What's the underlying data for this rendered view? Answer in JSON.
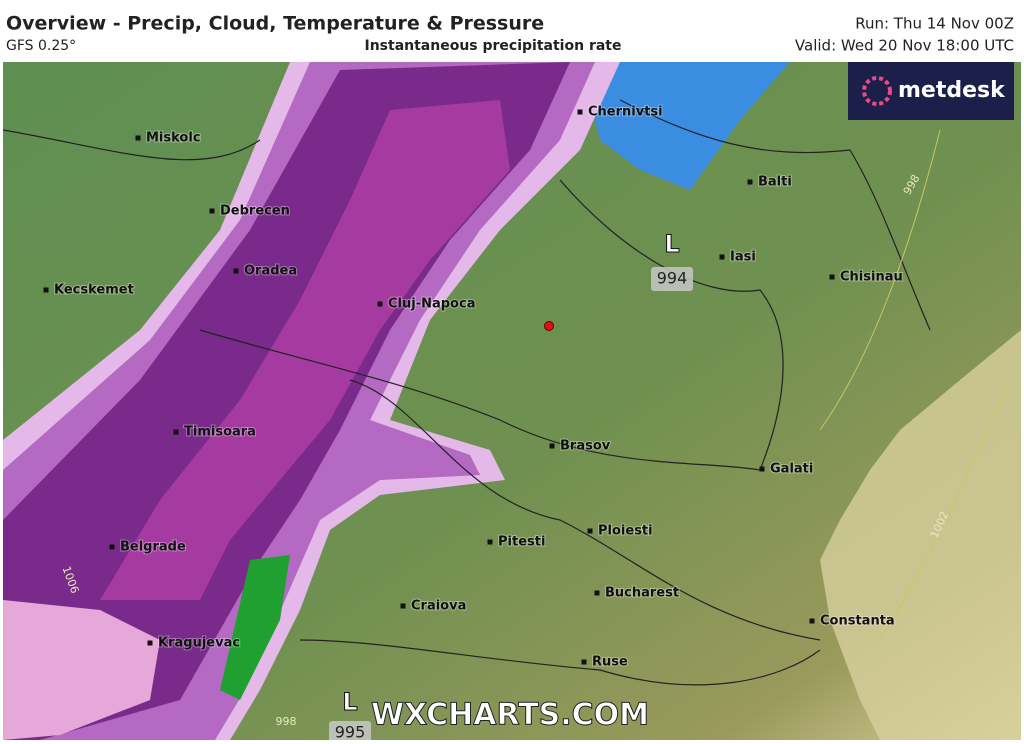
{
  "header": {
    "title": "Overview - Precip, Cloud, Temperature & Pressure",
    "model": "GFS 0.25°",
    "product": "Instantaneous precipitation rate",
    "run": "Run: Thu 14 Nov 00Z",
    "valid": "Valid: Wed 20 Nov 18:00 UTC"
  },
  "logo": "metdesk",
  "cities": [
    "Miskolc",
    "Chernivtsi",
    "Balti",
    "Debrecen",
    "Iasi",
    "Chisinau",
    "Oradea",
    "Kecskemet",
    "Cluj-Napoca",
    "Timisoara",
    "Brasov",
    "Galati",
    "Ploiesti",
    "Belgrade",
    "Pitesti",
    "Bucharest",
    "Craiova",
    "Constanta",
    "Kragujevac",
    "Ruse"
  ],
  "pressure_centers": [
    {
      "symbol": "L",
      "value": 994
    },
    {
      "symbol": "L",
      "value": 995
    }
  ],
  "isobar_labels": [
    998,
    1002,
    1006,
    998
  ],
  "watermark": "WXCHARTS.COM"
}
